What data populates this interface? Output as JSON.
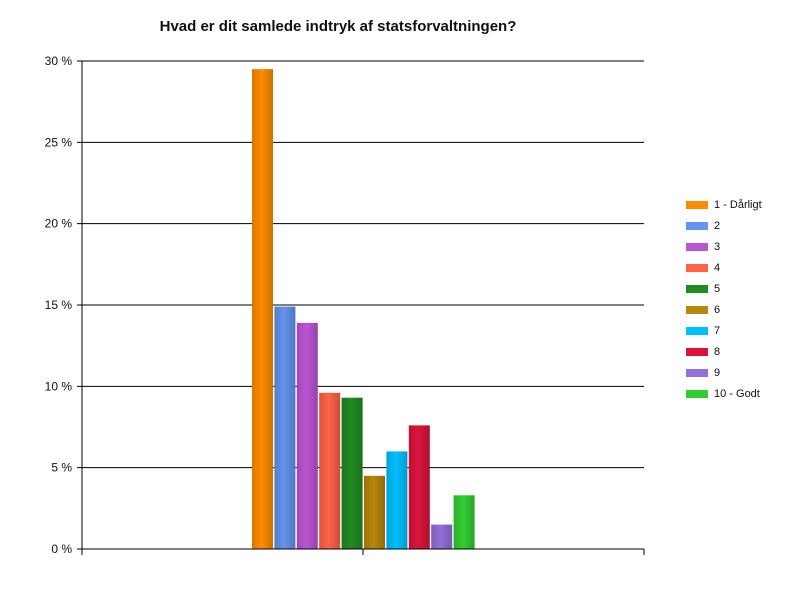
{
  "chart_data": {
    "type": "bar",
    "title": "Hvad er dit samlede indtryk af statsforvaltningen?",
    "xlabel": "",
    "ylabel": "",
    "ylim": [
      0,
      30
    ],
    "y_ticks": [
      0,
      5,
      10,
      15,
      20,
      25,
      30
    ],
    "y_tick_suffix": " %",
    "grid": true,
    "legend_position": "right",
    "series": [
      {
        "name": "1 - Dårligt",
        "value": 29.5,
        "color": "#ff8c00"
      },
      {
        "name": "2",
        "value": 14.9,
        "color": "#6495ed"
      },
      {
        "name": "3",
        "value": 13.9,
        "color": "#ba55d3"
      },
      {
        "name": "4",
        "value": 9.6,
        "color": "#ff6347"
      },
      {
        "name": "5",
        "value": 9.3,
        "color": "#228b22"
      },
      {
        "name": "6",
        "value": 4.5,
        "color": "#b8860b"
      },
      {
        "name": "7",
        "value": 6.0,
        "color": "#00bfff"
      },
      {
        "name": "8",
        "value": 7.6,
        "color": "#dc143c"
      },
      {
        "name": "9",
        "value": 1.5,
        "color": "#9370db"
      },
      {
        "name": "10 - Godt",
        "value": 3.3,
        "color": "#32cd32"
      }
    ]
  }
}
